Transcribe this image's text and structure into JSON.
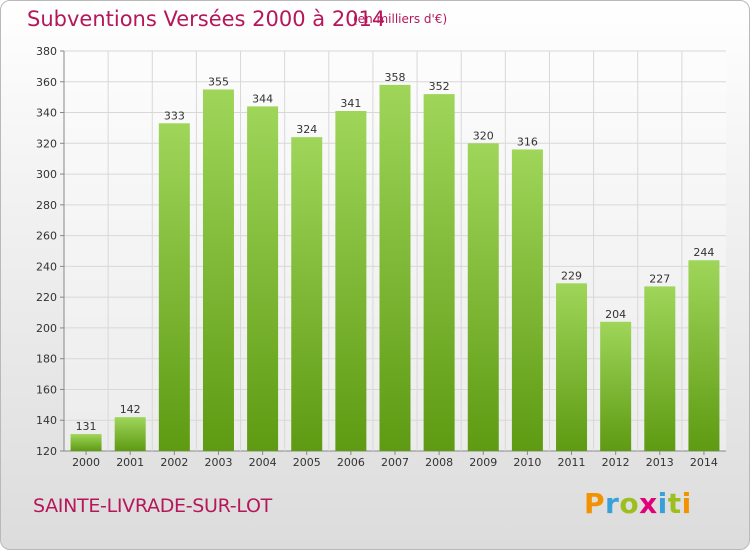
{
  "title": "Subventions Versées 2000 à 2014",
  "unit_note": "(en milliers d'€)",
  "town": "SAINTE-LIVRADE-SUR-LOT",
  "logo": {
    "text": "Proxiti",
    "letter_colors": [
      "#f39200",
      "#3aa0d8",
      "#9cbf1f",
      "#e2007a",
      "#3aa0d8",
      "#9cbf1f",
      "#f39200"
    ]
  },
  "colors": {
    "bar_top": "#9fd65a",
    "bar_bottom": "#5e9a12",
    "grid": "#d8d8d8",
    "title": "#b5175a"
  },
  "chart_data": {
    "type": "bar",
    "categories": [
      "2000",
      "2001",
      "2002",
      "2003",
      "2004",
      "2005",
      "2006",
      "2007",
      "2008",
      "2009",
      "2010",
      "2011",
      "2012",
      "2013",
      "2014"
    ],
    "values": [
      131,
      142,
      333,
      355,
      344,
      324,
      341,
      358,
      352,
      320,
      316,
      229,
      204,
      227,
      244
    ],
    "ylim": [
      120,
      380
    ],
    "yticks": [
      120,
      140,
      160,
      180,
      200,
      220,
      240,
      260,
      280,
      300,
      320,
      340,
      360,
      380
    ],
    "grid": true,
    "legend": "none"
  }
}
